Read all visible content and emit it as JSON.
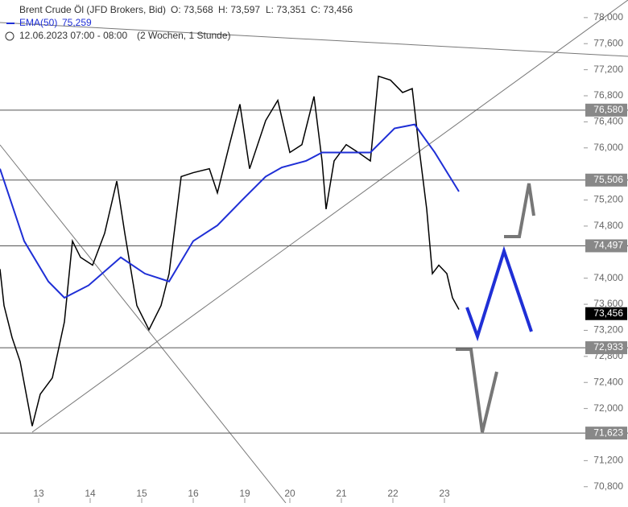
{
  "chart_data": {
    "type": "candlestick",
    "title": "Brent Crude Öl (JFD Brokers, Bid)",
    "ohlc": [
      "O: 73,568",
      "H: 73,597",
      "L: 73,351",
      "C: 73,456"
    ],
    "ema_label": "EMA(50)",
    "ema_value": "75,259",
    "date_label": "12.06.2023 07:00 - 08:00",
    "period_label": "(2 Wochen, 1 Stunde)",
    "xlim": [
      -0.75,
      10.578
    ],
    "xticks": [
      {
        "value": 0,
        "label": "13"
      },
      {
        "value": 1,
        "label": "14"
      },
      {
        "value": 2,
        "label": "15"
      },
      {
        "value": 3,
        "label": "16"
      },
      {
        "value": 4,
        "label": "19"
      },
      {
        "value": 4.875,
        "label": "20"
      },
      {
        "value": 5.875,
        "label": "21"
      },
      {
        "value": 6.875,
        "label": "22"
      },
      {
        "value": 7.875,
        "label": "23"
      }
    ],
    "ylim": [
      70.55,
      78.27
    ],
    "yticks": [
      {
        "value": 70.8,
        "label": "70,800"
      },
      {
        "value": 71.2,
        "label": "71,200"
      },
      {
        "value": 72.0,
        "label": "72,000"
      },
      {
        "value": 72.4,
        "label": "72,400"
      },
      {
        "value": 72.8,
        "label": "72,800"
      },
      {
        "value": 73.2,
        "label": "73,200"
      },
      {
        "value": 73.6,
        "label": "73,600"
      },
      {
        "value": 74.0,
        "label": "74,000"
      },
      {
        "value": 74.8,
        "label": "74,800"
      },
      {
        "value": 75.2,
        "label": "75,200"
      },
      {
        "value": 76.0,
        "label": "76,000"
      },
      {
        "value": 76.4,
        "label": "76,400"
      },
      {
        "value": 76.8,
        "label": "76,800"
      },
      {
        "value": 77.2,
        "label": "77,200"
      },
      {
        "value": 77.6,
        "label": "77,600"
      },
      {
        "value": 78.0,
        "label": "78,000"
      }
    ],
    "series": [
      {
        "name": "Brent",
        "color": "#000000",
        "x": [
          -0.75,
          -0.672,
          -0.516,
          -0.359,
          -0.125,
          0.031,
          0.266,
          0.5,
          0.656,
          0.813,
          1.047,
          1.281,
          1.516,
          1.672,
          1.906,
          2.141,
          2.375,
          2.531,
          2.766,
          3,
          3.313,
          3.469,
          3.703,
          3.906,
          4.094,
          4.406,
          4.641,
          4.875,
          5.109,
          5.344,
          5.5,
          5.578,
          5.734,
          5.969,
          6.203,
          6.438,
          6.594,
          6.828,
          7.063,
          7.25,
          7.375,
          7.531,
          7.641,
          7.766,
          7.922,
          8.031,
          8.156
        ],
        "values": [
          74.14,
          73.58,
          73.09,
          72.72,
          71.73,
          72.22,
          72.47,
          73.33,
          74.57,
          74.32,
          74.2,
          74.69,
          75.49,
          74.69,
          73.58,
          73.21,
          73.58,
          74.07,
          75.56,
          75.62,
          75.68,
          75.31,
          76.05,
          76.67,
          75.68,
          76.42,
          76.73,
          75.93,
          76.05,
          76.79,
          75.8,
          75.06,
          75.8,
          76.05,
          75.93,
          75.8,
          77.1,
          77.04,
          76.85,
          76.91,
          76.05,
          75.06,
          74.07,
          74.2,
          74.07,
          73.7,
          73.52
        ]
      },
      {
        "name": "EMA(50)",
        "color": "#1f2fd6",
        "x": [
          -0.75,
          -0.281,
          0.188,
          0.5,
          0.969,
          1.594,
          2.063,
          2.531,
          3,
          3.469,
          3.938,
          4.406,
          4.719,
          5.188,
          5.5,
          5.969,
          6.438,
          6.906,
          7.297,
          7.688,
          8.156
        ],
        "values": [
          75.68,
          74.57,
          73.95,
          73.7,
          73.89,
          74.32,
          74.07,
          73.95,
          74.57,
          74.81,
          75.19,
          75.56,
          75.7,
          75.8,
          75.93,
          75.93,
          75.93,
          76.3,
          76.36,
          75.93,
          75.33
        ]
      }
    ],
    "levels": [
      {
        "value": 76.58,
        "label": "76,580"
      },
      {
        "value": 75.506,
        "label": "75,506"
      },
      {
        "value": 74.497,
        "label": "74,497"
      },
      {
        "value": 72.933,
        "label": "72,933"
      },
      {
        "value": 71.623,
        "label": "71,623"
      }
    ],
    "last_price": {
      "value": 73.456,
      "label": "73,456"
    }
  }
}
